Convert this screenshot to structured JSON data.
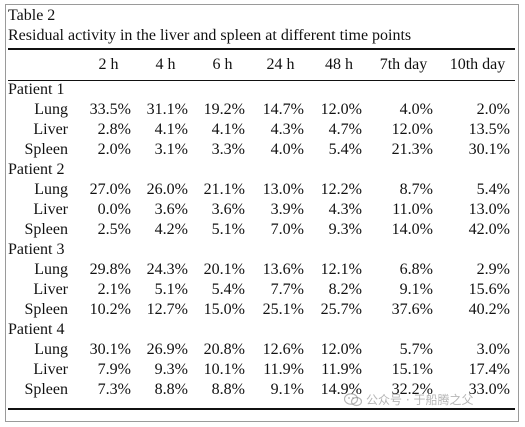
{
  "caption": {
    "number": "Table 2",
    "title": "Residual activity in the liver and spleen at different time points"
  },
  "columns": [
    "2 h",
    "4 h",
    "6 h",
    "24 h",
    "48 h",
    "7th day",
    "10th day"
  ],
  "patients": [
    {
      "label": "Patient 1",
      "rows": [
        {
          "organ": "Lung",
          "values": [
            "33.5%",
            "31.1%",
            "19.2%",
            "14.7%",
            "12.0%",
            "4.0%",
            "2.0%"
          ]
        },
        {
          "organ": "Liver",
          "values": [
            "2.8%",
            "4.1%",
            "4.1%",
            "4.3%",
            "4.7%",
            "12.0%",
            "13.5%"
          ]
        },
        {
          "organ": "Spleen",
          "values": [
            "2.0%",
            "3.1%",
            "3.3%",
            "4.0%",
            "5.4%",
            "21.3%",
            "30.1%"
          ]
        }
      ]
    },
    {
      "label": "Patient 2",
      "rows": [
        {
          "organ": "Lung",
          "values": [
            "27.0%",
            "26.0%",
            "21.1%",
            "13.0%",
            "12.2%",
            "8.7%",
            "5.4%"
          ]
        },
        {
          "organ": "Liver",
          "values": [
            "0.0%",
            "3.6%",
            "3.6%",
            "3.9%",
            "4.3%",
            "11.0%",
            "13.0%"
          ]
        },
        {
          "organ": "Spleen",
          "values": [
            "2.5%",
            "4.2%",
            "5.1%",
            "7.0%",
            "9.3%",
            "14.0%",
            "42.0%"
          ]
        }
      ]
    },
    {
      "label": "Patient 3",
      "rows": [
        {
          "organ": "Lung",
          "values": [
            "29.8%",
            "24.3%",
            "20.1%",
            "13.6%",
            "12.1%",
            "6.8%",
            "2.9%"
          ]
        },
        {
          "organ": "Liver",
          "values": [
            "2.1%",
            "5.1%",
            "5.4%",
            "7.7%",
            "8.2%",
            "9.1%",
            "15.6%"
          ]
        },
        {
          "organ": "Spleen",
          "values": [
            "10.2%",
            "12.7%",
            "15.0%",
            "25.1%",
            "25.7%",
            "37.6%",
            "40.2%"
          ]
        }
      ]
    },
    {
      "label": "Patient 4",
      "rows": [
        {
          "organ": "Lung",
          "values": [
            "30.1%",
            "26.9%",
            "20.8%",
            "12.6%",
            "12.0%",
            "5.7%",
            "3.0%"
          ]
        },
        {
          "organ": "Liver",
          "values": [
            "7.9%",
            "9.3%",
            "10.1%",
            "11.9%",
            "11.9%",
            "15.1%",
            "17.4%"
          ]
        },
        {
          "organ": "Spleen",
          "values": [
            "7.3%",
            "8.8%",
            "8.8%",
            "9.1%",
            "14.9%",
            "32.2%",
            "33.0%"
          ]
        }
      ]
    }
  ],
  "watermark": {
    "text": "公众号 · 于船腾之父",
    "icon": "wechat-icon"
  }
}
